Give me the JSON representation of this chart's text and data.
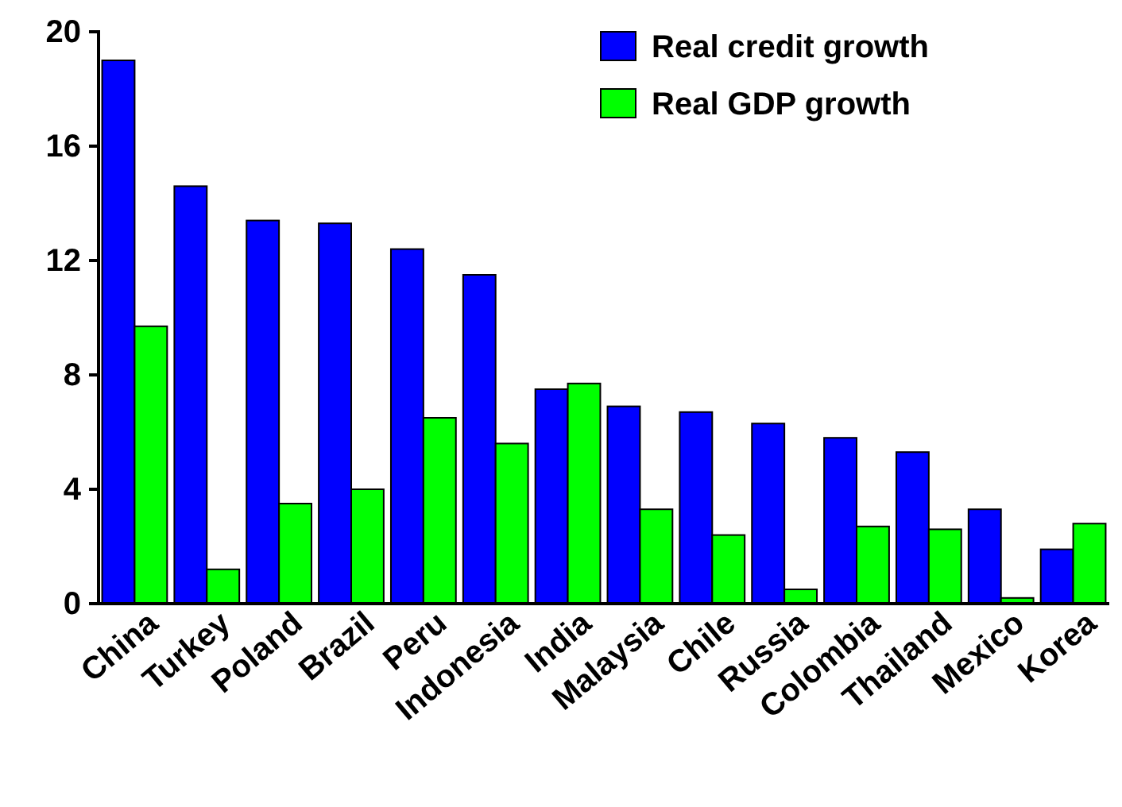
{
  "chart_data": {
    "type": "bar",
    "categories": [
      "China",
      "Turkey",
      "Poland",
      "Brazil",
      "Peru",
      "Indonesia",
      "India",
      "Malaysia",
      "Chile",
      "Russia",
      "Colombia",
      "Thailand",
      "Mexico",
      "Korea"
    ],
    "series": [
      {
        "name": "Real credit growth",
        "color": "#0000ff",
        "values": [
          19.0,
          14.6,
          13.4,
          13.3,
          12.4,
          11.5,
          7.5,
          6.9,
          6.7,
          6.3,
          5.8,
          5.3,
          3.3,
          1.9
        ]
      },
      {
        "name": "Real GDP growth",
        "color": "#00ff00",
        "values": [
          9.7,
          1.2,
          3.5,
          4.0,
          6.5,
          5.6,
          7.7,
          3.3,
          2.4,
          0.5,
          2.7,
          2.6,
          0.2,
          2.8
        ]
      }
    ],
    "ylim": [
      0,
      20
    ],
    "yticks": [
      0,
      4,
      8,
      12,
      16,
      20
    ],
    "grid": false,
    "legend": "top right"
  }
}
